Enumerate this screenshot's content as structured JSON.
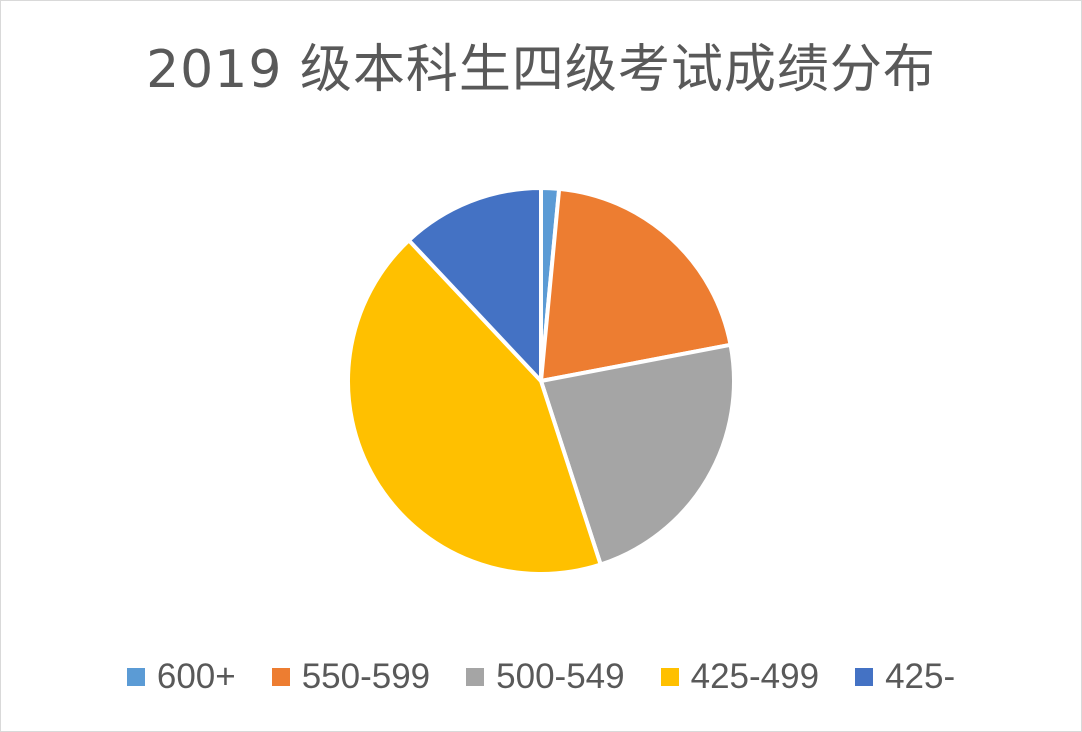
{
  "chart_data": {
    "type": "pie",
    "title": "2019 级本科生四级考试成绩分布",
    "categories": [
      "600+",
      "550-599",
      "500-549",
      "425-499",
      "425-"
    ],
    "values": [
      1.5,
      20.5,
      23.0,
      43.0,
      12.0
    ],
    "colors": [
      "#5B9BD5",
      "#ED7D31",
      "#A5A5A5",
      "#FFC000",
      "#4472C4"
    ],
    "legend_position": "bottom"
  }
}
